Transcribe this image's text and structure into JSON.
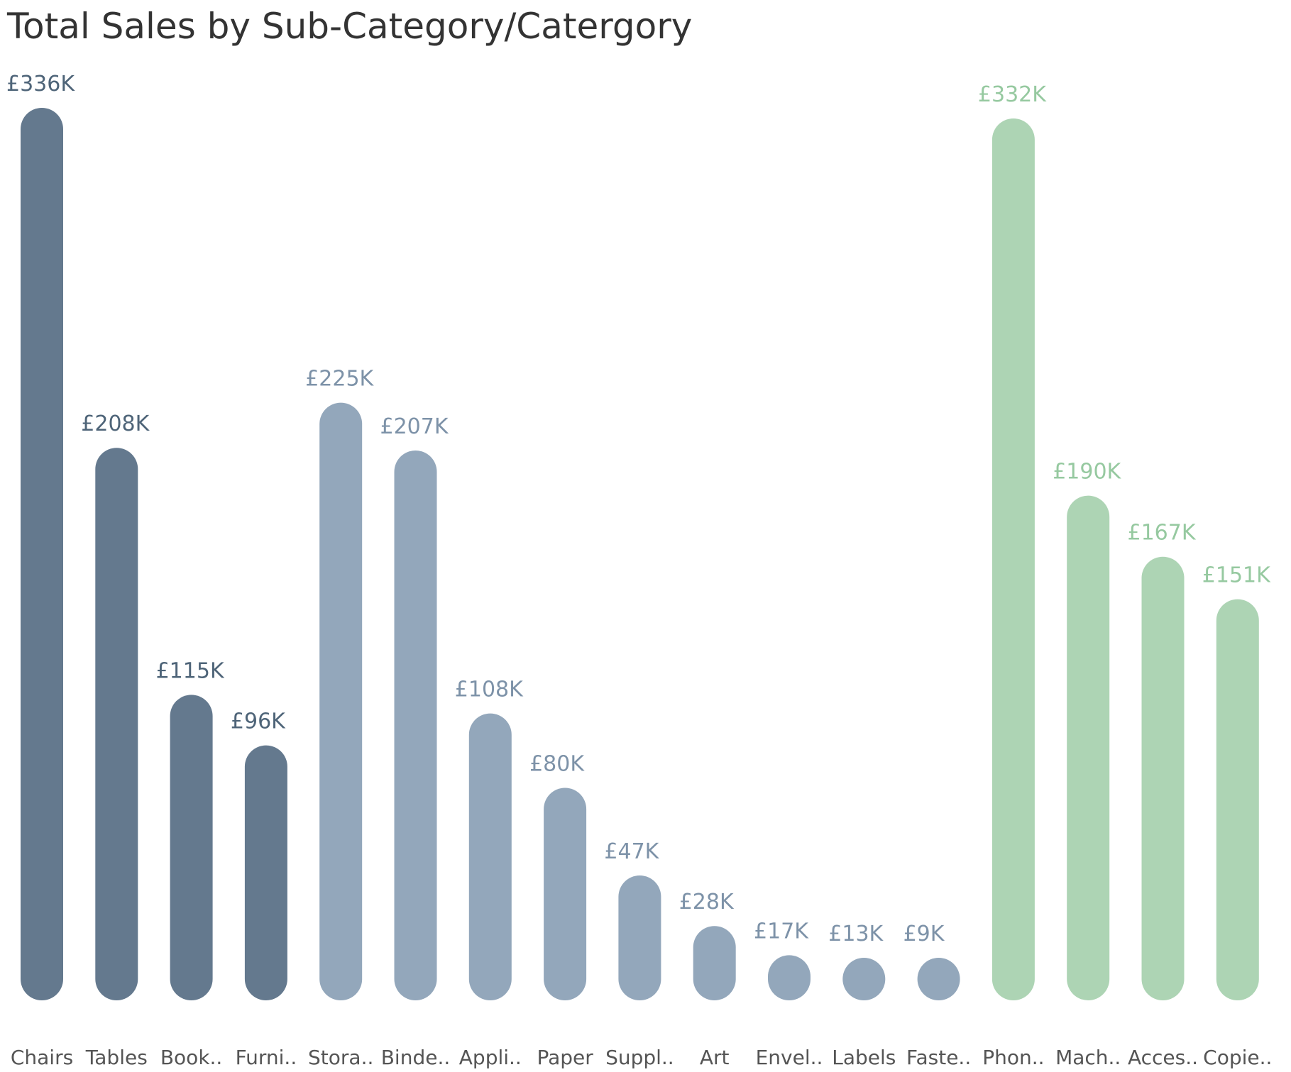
{
  "chart_data": {
    "type": "bar",
    "title": "Total Sales by Sub-Category/Catergory",
    "xlabel": "",
    "ylabel": "",
    "ylim": [
      0,
      336
    ],
    "grid": false,
    "legend": "none",
    "categories": [
      "Chairs",
      "Tables",
      "Book..",
      "Furni..",
      "Stora..",
      "Binde..",
      "Appli..",
      "Paper",
      "Suppl..",
      "Art",
      "Envel..",
      "Labels",
      "Faste..",
      "Phon..",
      "Mach..",
      "Acces..",
      "Copie.."
    ],
    "values": [
      336,
      208,
      115,
      96,
      225,
      207,
      108,
      80,
      47,
      28,
      17,
      13,
      9,
      332,
      190,
      167,
      151
    ],
    "value_labels": [
      "£336K",
      "£208K",
      "£115K",
      "£96K",
      "£225K",
      "£207K",
      "£108K",
      "£80K",
      "£47K",
      "£28K",
      "£17K",
      "£13K",
      "£9K",
      "£332K",
      "£190K",
      "£167K",
      "£151K"
    ],
    "group_index": [
      0,
      0,
      0,
      0,
      1,
      1,
      1,
      1,
      1,
      1,
      1,
      1,
      1,
      2,
      2,
      2,
      2
    ],
    "groups": [
      {
        "bar_color": "#64798e",
        "label_color": "#4e6478"
      },
      {
        "bar_color": "#93a7bb",
        "label_color": "#7d92a8"
      },
      {
        "bar_color": "#add4b4",
        "label_color": "#96c9a0"
      }
    ]
  }
}
